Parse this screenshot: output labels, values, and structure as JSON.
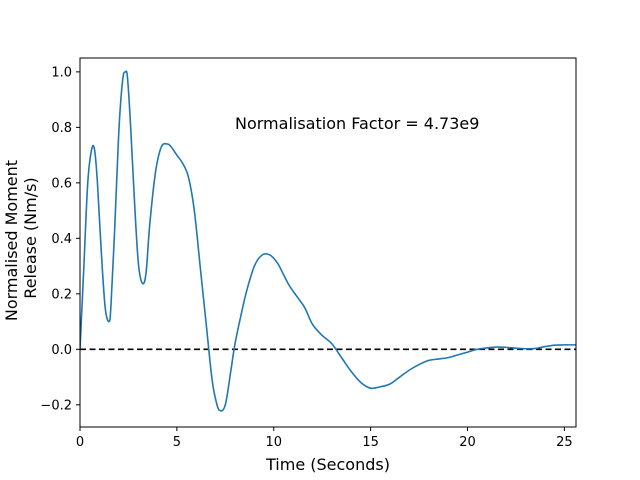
{
  "chart_data": {
    "type": "line",
    "title": "",
    "xlabel": "Time (Seconds)",
    "ylabel_lines": [
      "Normalised Moment",
      "Release (Nm/s)"
    ],
    "xlim": [
      0,
      25.6
    ],
    "ylim": [
      -0.28,
      1.05
    ],
    "x_ticks": [
      0,
      5,
      10,
      15,
      20,
      25
    ],
    "y_ticks": [
      -0.2,
      0.0,
      0.2,
      0.4,
      0.6,
      0.8,
      1.0
    ],
    "x_tick_labels": [
      "0",
      "5",
      "10",
      "15",
      "20",
      "25"
    ],
    "y_tick_labels": [
      "−0.2",
      "0.0",
      "0.2",
      "0.4",
      "0.6",
      "0.8",
      "1.0"
    ],
    "grid": false,
    "annotation": "Normalisation Factor = 4.73e9",
    "reference_line": {
      "y": 0.0,
      "style": "dashed",
      "color": "#000000"
    },
    "series": [
      {
        "color": "#1f77b4",
        "x": [
          0,
          0.2,
          0.4,
          0.6,
          0.75,
          0.9,
          1.1,
          1.3,
          1.5,
          1.6,
          1.8,
          2.0,
          2.2,
          2.35,
          2.45,
          2.6,
          2.8,
          3.0,
          3.2,
          3.4,
          3.6,
          3.9,
          4.2,
          4.5,
          4.7,
          5.0,
          5.3,
          5.6,
          5.9,
          6.2,
          6.5,
          6.8,
          7.0,
          7.2,
          7.5,
          7.8,
          8.0,
          8.3,
          8.6,
          9.0,
          9.4,
          9.8,
          10.2,
          10.5,
          10.8,
          11.2,
          11.6,
          12.0,
          12.5,
          13.0,
          13.5,
          14.0,
          14.5,
          15.0,
          15.5,
          16.0,
          16.5,
          17.0,
          17.5,
          18.0,
          18.5,
          19.0,
          19.5,
          20.0,
          20.5,
          21.0,
          21.5,
          22.0,
          22.5,
          23.0,
          23.5,
          24.0,
          24.5,
          25.0,
          25.3,
          25.6
        ],
        "y": [
          0.0,
          0.3,
          0.6,
          0.72,
          0.72,
          0.6,
          0.35,
          0.15,
          0.1,
          0.16,
          0.45,
          0.78,
          0.97,
          1.0,
          0.98,
          0.82,
          0.55,
          0.32,
          0.24,
          0.27,
          0.45,
          0.64,
          0.73,
          0.74,
          0.73,
          0.7,
          0.67,
          0.62,
          0.5,
          0.3,
          0.1,
          -0.1,
          -0.18,
          -0.22,
          -0.2,
          -0.07,
          0.02,
          0.12,
          0.21,
          0.3,
          0.34,
          0.34,
          0.31,
          0.27,
          0.23,
          0.19,
          0.15,
          0.09,
          0.05,
          0.02,
          -0.03,
          -0.08,
          -0.12,
          -0.14,
          -0.135,
          -0.125,
          -0.1,
          -0.075,
          -0.055,
          -0.04,
          -0.035,
          -0.03,
          -0.02,
          -0.01,
          0.0,
          0.005,
          0.008,
          0.007,
          0.004,
          0.002,
          0.003,
          0.01,
          0.015,
          0.016,
          0.016,
          0.016
        ]
      }
    ]
  }
}
